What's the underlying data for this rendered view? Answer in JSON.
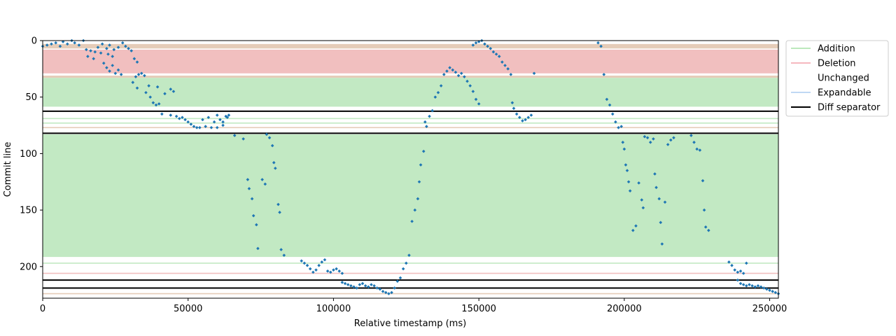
{
  "chart_data": {
    "type": "scatter",
    "title": "",
    "xlabel": "Relative timestamp (ms)",
    "ylabel": "Commit line",
    "xlim": [
      0,
      253000
    ],
    "ylim": [
      228,
      0
    ],
    "y_inverted": true,
    "xticks": [
      0,
      50000,
      100000,
      150000,
      200000,
      250000
    ],
    "yticks": [
      0,
      50,
      100,
      150,
      200
    ],
    "grid": false,
    "legend": {
      "placement": "outside-top-right",
      "entries": [
        {
          "label": "Addition",
          "color": "#a6e0a6"
        },
        {
          "label": "Deletion",
          "color": "#f4a0a8"
        },
        {
          "label": "Unchanged",
          "color": "#ffffff"
        },
        {
          "label": "Expandable",
          "color": "#aacbf0"
        },
        {
          "label": "Diff separator",
          "color": "#000000"
        }
      ]
    },
    "colors": {
      "addition_band": "#c2e9c3",
      "deletion_band": "#f1bfbf",
      "unchanged_band": "#ffffff",
      "mixed_band": "#e5ccb8",
      "separator": "#000000",
      "points": "#1f77b4"
    },
    "regions": [
      {
        "type": "mixed",
        "y0": 3,
        "y1": 7
      },
      {
        "type": "deletion",
        "y0": 8,
        "y1": 29
      },
      {
        "type": "mixed",
        "y0": 31,
        "y1": 33
      },
      {
        "type": "addition",
        "y0": 33,
        "y1": 58.5
      },
      {
        "type": "separator",
        "y": 62.5
      },
      {
        "type": "addition",
        "y0": 68.5,
        "y1": 69.5
      },
      {
        "type": "addition",
        "y0": 72.5,
        "y1": 73.5
      },
      {
        "type": "mixed",
        "y0": 76.5,
        "y1": 77.5
      },
      {
        "type": "separator",
        "y": 82
      },
      {
        "type": "addition",
        "y0": 83,
        "y1": 191.5
      },
      {
        "type": "addition",
        "y0": 196.5,
        "y1": 197.5
      },
      {
        "type": "deletion",
        "y0": 205.5,
        "y1": 206.5
      },
      {
        "type": "separator",
        "y": 212
      },
      {
        "type": "separator",
        "y": 219
      },
      {
        "type": "mixed",
        "y0": 223.5,
        "y1": 224.5
      }
    ],
    "series": [
      {
        "points": [
          [
            0,
            5
          ],
          [
            1500,
            4
          ],
          [
            3000,
            3
          ],
          [
            4500,
            2
          ],
          [
            6000,
            5
          ],
          [
            7000,
            1
          ],
          [
            8500,
            3
          ],
          [
            10000,
            0
          ],
          [
            11000,
            2
          ],
          [
            12500,
            4
          ],
          [
            14000,
            0
          ],
          [
            15000,
            8
          ],
          [
            16500,
            9
          ],
          [
            18000,
            10
          ],
          [
            19000,
            6
          ],
          [
            20500,
            3
          ],
          [
            22000,
            7
          ],
          [
            23000,
            4
          ],
          [
            24500,
            8
          ],
          [
            26000,
            6
          ],
          [
            15500,
            14
          ],
          [
            17500,
            16
          ],
          [
            20000,
            11
          ],
          [
            22500,
            12
          ],
          [
            24000,
            14
          ],
          [
            21000,
            20
          ],
          [
            22000,
            24
          ],
          [
            23000,
            27
          ],
          [
            24000,
            22
          ],
          [
            25000,
            29
          ],
          [
            26000,
            26
          ],
          [
            27000,
            30
          ],
          [
            27500,
            2
          ],
          [
            28500,
            5
          ],
          [
            29500,
            7
          ],
          [
            30500,
            9
          ],
          [
            31500,
            16
          ],
          [
            32500,
            19
          ],
          [
            31000,
            37
          ],
          [
            32000,
            32
          ],
          [
            33000,
            30
          ],
          [
            34000,
            29
          ],
          [
            35000,
            31
          ],
          [
            32500,
            42
          ],
          [
            35500,
            46
          ],
          [
            37000,
            50
          ],
          [
            38000,
            55
          ],
          [
            39000,
            57
          ],
          [
            40000,
            56
          ],
          [
            36500,
            40
          ],
          [
            39500,
            41
          ],
          [
            42000,
            47
          ],
          [
            44000,
            43
          ],
          [
            45000,
            45
          ],
          [
            41000,
            65
          ],
          [
            44000,
            66
          ],
          [
            46000,
            67
          ],
          [
            47000,
            69
          ],
          [
            48000,
            68
          ],
          [
            49000,
            70
          ],
          [
            50000,
            72
          ],
          [
            51000,
            74
          ],
          [
            52000,
            76
          ],
          [
            53000,
            77
          ],
          [
            54000,
            77
          ],
          [
            56000,
            76
          ],
          [
            58000,
            77
          ],
          [
            60000,
            77
          ],
          [
            62000,
            75
          ],
          [
            63000,
            67
          ],
          [
            64000,
            66
          ],
          [
            55000,
            70
          ],
          [
            57000,
            68
          ],
          [
            59000,
            72
          ],
          [
            60000,
            66
          ],
          [
            61000,
            70
          ],
          [
            62000,
            72
          ],
          [
            63500,
            68
          ],
          [
            66000,
            84
          ],
          [
            69000,
            87
          ],
          [
            70500,
            123
          ],
          [
            71000,
            131
          ],
          [
            72000,
            140
          ],
          [
            72500,
            155
          ],
          [
            73500,
            163
          ],
          [
            74000,
            184
          ],
          [
            75500,
            123
          ],
          [
            76500,
            127
          ],
          [
            77000,
            83
          ],
          [
            78000,
            86
          ],
          [
            79000,
            93
          ],
          [
            79500,
            108
          ],
          [
            80000,
            113
          ],
          [
            81000,
            145
          ],
          [
            81500,
            152
          ],
          [
            82000,
            185
          ],
          [
            83000,
            190
          ],
          [
            89000,
            195
          ],
          [
            90000,
            197
          ],
          [
            91000,
            199
          ],
          [
            92000,
            202
          ],
          [
            93000,
            205
          ],
          [
            94000,
            203
          ],
          [
            95000,
            199
          ],
          [
            96000,
            196
          ],
          [
            97000,
            194
          ],
          [
            98000,
            204
          ],
          [
            99000,
            205
          ],
          [
            100000,
            203
          ],
          [
            101000,
            202
          ],
          [
            102000,
            204
          ],
          [
            103000,
            206
          ],
          [
            103000,
            214
          ],
          [
            104000,
            215
          ],
          [
            105000,
            216
          ],
          [
            106000,
            217
          ],
          [
            107000,
            218
          ],
          [
            108000,
            219
          ],
          [
            109000,
            216
          ],
          [
            110000,
            215
          ],
          [
            111000,
            217
          ],
          [
            112000,
            218
          ],
          [
            113000,
            216
          ],
          [
            114000,
            217
          ],
          [
            115000,
            219
          ],
          [
            116000,
            220
          ],
          [
            117000,
            222
          ],
          [
            118000,
            223
          ],
          [
            119000,
            224
          ],
          [
            120000,
            223
          ],
          [
            121000,
            219
          ],
          [
            122000,
            213
          ],
          [
            123000,
            210
          ],
          [
            124000,
            202
          ],
          [
            125000,
            197
          ],
          [
            126000,
            190
          ],
          [
            127000,
            160
          ],
          [
            128000,
            150
          ],
          [
            129000,
            140
          ],
          [
            129500,
            125
          ],
          [
            130000,
            110
          ],
          [
            131000,
            98
          ],
          [
            131500,
            72
          ],
          [
            132000,
            76
          ],
          [
            133000,
            67
          ],
          [
            134000,
            62
          ],
          [
            135000,
            50
          ],
          [
            136000,
            46
          ],
          [
            137000,
            40
          ],
          [
            138000,
            30
          ],
          [
            139000,
            27
          ],
          [
            140000,
            24
          ],
          [
            141000,
            26
          ],
          [
            142000,
            28
          ],
          [
            143000,
            31
          ],
          [
            144000,
            29
          ],
          [
            145000,
            32
          ],
          [
            146000,
            36
          ],
          [
            147000,
            40
          ],
          [
            148000,
            45
          ],
          [
            149000,
            52
          ],
          [
            150000,
            56
          ],
          [
            148000,
            4
          ],
          [
            149000,
            2
          ],
          [
            150000,
            1
          ],
          [
            151000,
            0
          ],
          [
            152000,
            3
          ],
          [
            153000,
            5
          ],
          [
            154000,
            7
          ],
          [
            155000,
            10
          ],
          [
            156000,
            12
          ],
          [
            157000,
            14
          ],
          [
            158000,
            19
          ],
          [
            159000,
            22
          ],
          [
            160000,
            25
          ],
          [
            161000,
            30
          ],
          [
            161500,
            55
          ],
          [
            162000,
            60
          ],
          [
            163000,
            65
          ],
          [
            164000,
            68
          ],
          [
            165000,
            71
          ],
          [
            166000,
            70
          ],
          [
            167000,
            68
          ],
          [
            168000,
            66
          ],
          [
            169000,
            29
          ],
          [
            191000,
            2
          ],
          [
            192000,
            5
          ],
          [
            193000,
            30
          ],
          [
            194000,
            52
          ],
          [
            195000,
            57
          ],
          [
            196000,
            65
          ],
          [
            197000,
            72
          ],
          [
            198000,
            77
          ],
          [
            199000,
            76
          ],
          [
            199500,
            90
          ],
          [
            200000,
            96
          ],
          [
            200500,
            110
          ],
          [
            201000,
            115
          ],
          [
            201500,
            125
          ],
          [
            202000,
            133
          ],
          [
            203000,
            168
          ],
          [
            204000,
            164
          ],
          [
            205000,
            126
          ],
          [
            206000,
            141
          ],
          [
            206500,
            148
          ],
          [
            207000,
            85
          ],
          [
            208000,
            86
          ],
          [
            209000,
            90
          ],
          [
            210000,
            87
          ],
          [
            210500,
            118
          ],
          [
            211000,
            130
          ],
          [
            212000,
            140
          ],
          [
            212500,
            161
          ],
          [
            213000,
            180
          ],
          [
            214000,
            143
          ],
          [
            215000,
            92
          ],
          [
            216000,
            88
          ],
          [
            217000,
            86
          ],
          [
            223000,
            84
          ],
          [
            224000,
            90
          ],
          [
            225000,
            96
          ],
          [
            226000,
            97
          ],
          [
            227000,
            124
          ],
          [
            227500,
            150
          ],
          [
            228000,
            165
          ],
          [
            229000,
            168
          ],
          [
            236000,
            196
          ],
          [
            237000,
            199
          ],
          [
            238000,
            203
          ],
          [
            239000,
            205
          ],
          [
            240000,
            204
          ],
          [
            241000,
            206
          ],
          [
            242000,
            197
          ],
          [
            239000,
            212
          ],
          [
            240000,
            215
          ],
          [
            241000,
            216
          ],
          [
            242000,
            217
          ],
          [
            243000,
            216
          ],
          [
            244000,
            217
          ],
          [
            245000,
            218
          ],
          [
            246000,
            217
          ],
          [
            247000,
            218
          ],
          [
            248000,
            219
          ],
          [
            249000,
            220
          ],
          [
            250000,
            221
          ],
          [
            251000,
            222
          ],
          [
            252000,
            223
          ],
          [
            253000,
            224
          ]
        ]
      }
    ]
  }
}
